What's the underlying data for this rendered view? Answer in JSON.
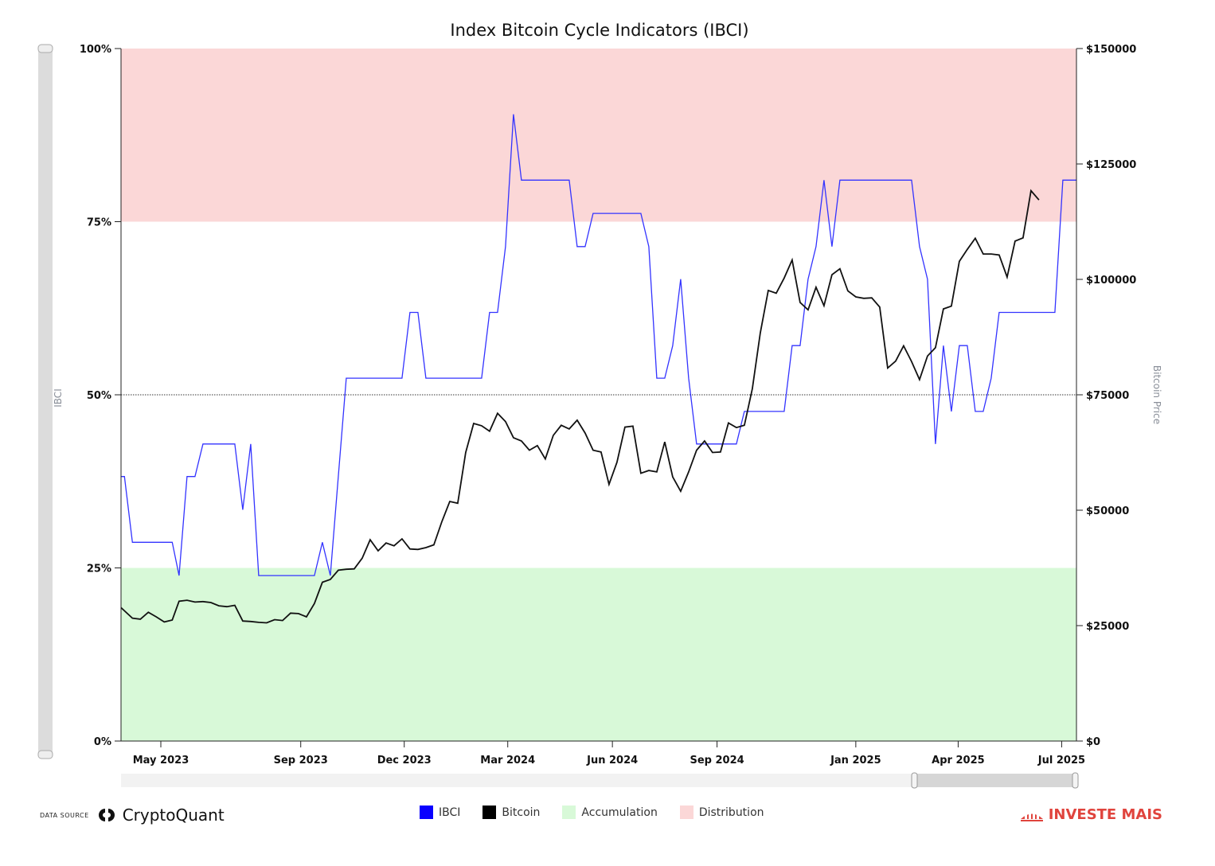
{
  "chart_data": {
    "type": "line",
    "title": "Index Bitcoin Cycle Indicators (IBCI)",
    "ylabel_left": "IBCI",
    "ylabel_right": "Bitcoin Price",
    "left_axis": {
      "ylim": [
        0,
        100
      ],
      "ticks": [
        0,
        25,
        50,
        75,
        100
      ],
      "tick_labels": [
        "0%",
        "25%",
        "50%",
        "75%",
        "100%"
      ]
    },
    "right_axis": {
      "ylim": [
        0,
        150000
      ],
      "ticks": [
        0,
        25000,
        50000,
        75000,
        100000,
        125000,
        150000
      ],
      "tick_labels": [
        "$0",
        "$25000",
        "$50000",
        "$75000",
        "$100000",
        "$125000",
        "$150000"
      ]
    },
    "x_range": [
      "2023-03-27",
      "2025-07-14"
    ],
    "x_ticks": [
      {
        "date": "2023-05-01",
        "label": "May 2023"
      },
      {
        "date": "2023-09-01",
        "label": "Sep 2023"
      },
      {
        "date": "2023-12-01",
        "label": "Dec 2023"
      },
      {
        "date": "2024-03-01",
        "label": "Mar 2024"
      },
      {
        "date": "2024-06-01",
        "label": "Jun 2024"
      },
      {
        "date": "2024-09-01",
        "label": "Sep 2024"
      },
      {
        "date": "2025-01-01",
        "label": "Jan 2025"
      },
      {
        "date": "2025-04-01",
        "label": "Apr 2025"
      },
      {
        "date": "2025-07-01",
        "label": "Jul 2025"
      }
    ],
    "zones": [
      {
        "name": "Accumulation",
        "from": 0,
        "to": 25,
        "color": "#d8f9d8"
      },
      {
        "name": "Distribution",
        "from": 75,
        "to": 100,
        "color": "#fbd7d7"
      }
    ],
    "reference_line": 50,
    "series": [
      {
        "name": "IBCI",
        "color": "#3333ff",
        "axis": "left",
        "points": [
          [
            "2023-03-27",
            38.2
          ],
          [
            "2023-03-30",
            38.2
          ],
          [
            "2023-04-06",
            28.7
          ],
          [
            "2023-04-13",
            28.7
          ],
          [
            "2023-04-20",
            28.7
          ],
          [
            "2023-04-27",
            28.7
          ],
          [
            "2023-05-04",
            28.7
          ],
          [
            "2023-05-11",
            28.7
          ],
          [
            "2023-05-17",
            23.9
          ],
          [
            "2023-05-24",
            38.2
          ],
          [
            "2023-05-31",
            38.2
          ],
          [
            "2023-06-07",
            42.9
          ],
          [
            "2023-06-14",
            42.9
          ],
          [
            "2023-06-21",
            42.9
          ],
          [
            "2023-06-28",
            42.9
          ],
          [
            "2023-07-05",
            42.9
          ],
          [
            "2023-07-12",
            33.4
          ],
          [
            "2023-07-19",
            42.9
          ],
          [
            "2023-07-26",
            23.9
          ],
          [
            "2023-08-02",
            23.9
          ],
          [
            "2023-08-09",
            23.9
          ],
          [
            "2023-08-16",
            23.9
          ],
          [
            "2023-08-23",
            23.9
          ],
          [
            "2023-08-30",
            23.9
          ],
          [
            "2023-09-06",
            23.9
          ],
          [
            "2023-09-13",
            23.9
          ],
          [
            "2023-09-20",
            28.7
          ],
          [
            "2023-09-27",
            23.9
          ],
          [
            "2023-10-04",
            38.2
          ],
          [
            "2023-10-11",
            52.4
          ],
          [
            "2023-10-18",
            52.4
          ],
          [
            "2023-10-25",
            52.4
          ],
          [
            "2023-11-01",
            52.4
          ],
          [
            "2023-11-08",
            52.4
          ],
          [
            "2023-11-15",
            52.4
          ],
          [
            "2023-11-22",
            52.4
          ],
          [
            "2023-11-29",
            52.4
          ],
          [
            "2023-12-06",
            61.9
          ],
          [
            "2023-12-13",
            61.9
          ],
          [
            "2023-12-20",
            52.4
          ],
          [
            "2023-12-27",
            52.4
          ],
          [
            "2024-01-03",
            52.4
          ],
          [
            "2024-01-10",
            52.4
          ],
          [
            "2024-01-17",
            52.4
          ],
          [
            "2024-01-24",
            52.4
          ],
          [
            "2024-01-31",
            52.4
          ],
          [
            "2024-02-07",
            52.4
          ],
          [
            "2024-02-14",
            61.9
          ],
          [
            "2024-02-21",
            61.9
          ],
          [
            "2024-02-28",
            71.4
          ],
          [
            "2024-03-06",
            90.5
          ],
          [
            "2024-03-13",
            81.0
          ],
          [
            "2024-03-20",
            81.0
          ],
          [
            "2024-03-27",
            81.0
          ],
          [
            "2024-04-03",
            81.0
          ],
          [
            "2024-04-10",
            81.0
          ],
          [
            "2024-04-17",
            81.0
          ],
          [
            "2024-04-24",
            81.0
          ],
          [
            "2024-05-01",
            71.4
          ],
          [
            "2024-05-08",
            71.4
          ],
          [
            "2024-05-15",
            76.2
          ],
          [
            "2024-05-22",
            76.2
          ],
          [
            "2024-05-29",
            76.2
          ],
          [
            "2024-06-05",
            76.2
          ],
          [
            "2024-06-12",
            76.2
          ],
          [
            "2024-06-19",
            76.2
          ],
          [
            "2024-06-26",
            76.2
          ],
          [
            "2024-07-03",
            71.4
          ],
          [
            "2024-07-10",
            52.4
          ],
          [
            "2024-07-17",
            52.4
          ],
          [
            "2024-07-24",
            57.1
          ],
          [
            "2024-07-31",
            66.7
          ],
          [
            "2024-08-07",
            52.4
          ],
          [
            "2024-08-14",
            42.9
          ],
          [
            "2024-08-21",
            42.9
          ],
          [
            "2024-08-28",
            42.9
          ],
          [
            "2024-09-04",
            42.9
          ],
          [
            "2024-09-11",
            42.9
          ],
          [
            "2024-09-18",
            42.9
          ],
          [
            "2024-09-25",
            47.6
          ],
          [
            "2024-10-02",
            47.6
          ],
          [
            "2024-10-09",
            47.6
          ],
          [
            "2024-10-16",
            47.6
          ],
          [
            "2024-10-23",
            47.6
          ],
          [
            "2024-10-30",
            47.6
          ],
          [
            "2024-11-06",
            57.1
          ],
          [
            "2024-11-13",
            57.1
          ],
          [
            "2024-11-20",
            66.7
          ],
          [
            "2024-11-27",
            71.4
          ],
          [
            "2024-12-04",
            81.0
          ],
          [
            "2024-12-11",
            71.4
          ],
          [
            "2024-12-18",
            81.0
          ],
          [
            "2024-12-25",
            81.0
          ],
          [
            "2025-01-01",
            81.0
          ],
          [
            "2025-01-08",
            81.0
          ],
          [
            "2025-01-15",
            81.0
          ],
          [
            "2025-01-22",
            81.0
          ],
          [
            "2025-01-29",
            81.0
          ],
          [
            "2025-02-05",
            81.0
          ],
          [
            "2025-02-12",
            81.0
          ],
          [
            "2025-02-19",
            81.0
          ],
          [
            "2025-02-26",
            71.4
          ],
          [
            "2025-03-05",
            66.7
          ],
          [
            "2025-03-12",
            42.9
          ],
          [
            "2025-03-19",
            57.1
          ],
          [
            "2025-03-26",
            47.6
          ],
          [
            "2025-04-02",
            57.1
          ],
          [
            "2025-04-09",
            57.1
          ],
          [
            "2025-04-16",
            47.6
          ],
          [
            "2025-04-23",
            47.6
          ],
          [
            "2025-04-30",
            52.4
          ],
          [
            "2025-05-07",
            61.9
          ],
          [
            "2025-05-14",
            61.9
          ],
          [
            "2025-05-21",
            61.9
          ],
          [
            "2025-05-28",
            61.9
          ],
          [
            "2025-06-04",
            61.9
          ],
          [
            "2025-06-11",
            61.9
          ],
          [
            "2025-06-18",
            61.9
          ],
          [
            "2025-06-25",
            61.9
          ],
          [
            "2025-07-02",
            81.0
          ],
          [
            "2025-07-09",
            81.0
          ],
          [
            "2025-07-14",
            81.0
          ]
        ]
      },
      {
        "name": "Bitcoin",
        "color": "#111111",
        "axis": "right",
        "points": [
          [
            "2023-03-27",
            28900
          ],
          [
            "2023-03-30",
            28200
          ],
          [
            "2023-04-06",
            26600
          ],
          [
            "2023-04-13",
            26400
          ],
          [
            "2023-04-20",
            27900
          ],
          [
            "2023-04-27",
            26900
          ],
          [
            "2023-05-04",
            25800
          ],
          [
            "2023-05-11",
            26200
          ],
          [
            "2023-05-17",
            30300
          ],
          [
            "2023-05-24",
            30500
          ],
          [
            "2023-05-31",
            30100
          ],
          [
            "2023-06-07",
            30200
          ],
          [
            "2023-06-14",
            30000
          ],
          [
            "2023-06-21",
            29300
          ],
          [
            "2023-06-28",
            29100
          ],
          [
            "2023-07-05",
            29400
          ],
          [
            "2023-07-12",
            26000
          ],
          [
            "2023-07-19",
            25900
          ],
          [
            "2023-07-26",
            25700
          ],
          [
            "2023-08-02",
            25600
          ],
          [
            "2023-08-09",
            26300
          ],
          [
            "2023-08-16",
            26100
          ],
          [
            "2023-08-23",
            27700
          ],
          [
            "2023-08-30",
            27600
          ],
          [
            "2023-09-06",
            26900
          ],
          [
            "2023-09-13",
            29800
          ],
          [
            "2023-09-20",
            34400
          ],
          [
            "2023-09-27",
            35000
          ],
          [
            "2023-10-04",
            37000
          ],
          [
            "2023-10-11",
            37200
          ],
          [
            "2023-10-18",
            37300
          ],
          [
            "2023-10-25",
            39600
          ],
          [
            "2023-11-01",
            43600
          ],
          [
            "2023-11-08",
            41200
          ],
          [
            "2023-11-15",
            42900
          ],
          [
            "2023-11-22",
            42300
          ],
          [
            "2023-11-29",
            43800
          ],
          [
            "2023-12-06",
            41600
          ],
          [
            "2023-12-13",
            41500
          ],
          [
            "2023-12-20",
            41900
          ],
          [
            "2023-12-27",
            42500
          ],
          [
            "2024-01-03",
            47500
          ],
          [
            "2024-01-10",
            51900
          ],
          [
            "2024-01-17",
            51500
          ],
          [
            "2024-01-24",
            62500
          ],
          [
            "2024-01-31",
            68800
          ],
          [
            "2024-02-07",
            68300
          ],
          [
            "2024-02-14",
            67100
          ],
          [
            "2024-02-21",
            71000
          ],
          [
            "2024-02-28",
            69200
          ],
          [
            "2024-03-06",
            65700
          ],
          [
            "2024-03-13",
            65000
          ],
          [
            "2024-03-20",
            63000
          ],
          [
            "2024-03-27",
            64000
          ],
          [
            "2024-04-03",
            61100
          ],
          [
            "2024-04-10",
            66200
          ],
          [
            "2024-04-17",
            68400
          ],
          [
            "2024-04-24",
            67600
          ],
          [
            "2024-05-01",
            69500
          ],
          [
            "2024-05-08",
            66700
          ],
          [
            "2024-05-15",
            63000
          ],
          [
            "2024-05-22",
            62600
          ],
          [
            "2024-05-29",
            55600
          ],
          [
            "2024-06-05",
            60400
          ],
          [
            "2024-06-12",
            68000
          ],
          [
            "2024-06-19",
            68200
          ],
          [
            "2024-06-26",
            58000
          ],
          [
            "2024-07-03",
            58600
          ],
          [
            "2024-07-10",
            58300
          ],
          [
            "2024-07-17",
            64800
          ],
          [
            "2024-07-24",
            57200
          ],
          [
            "2024-07-31",
            54100
          ],
          [
            "2024-08-07",
            58300
          ],
          [
            "2024-08-14",
            63000
          ],
          [
            "2024-08-21",
            65000
          ],
          [
            "2024-08-28",
            62500
          ],
          [
            "2024-09-04",
            62600
          ],
          [
            "2024-09-11",
            68900
          ],
          [
            "2024-09-18",
            67900
          ],
          [
            "2024-09-25",
            68400
          ],
          [
            "2024-10-02",
            76300
          ],
          [
            "2024-10-09",
            88400
          ],
          [
            "2024-10-16",
            97600
          ],
          [
            "2024-10-23",
            97000
          ],
          [
            "2024-10-30",
            100300
          ],
          [
            "2024-11-06",
            104200
          ],
          [
            "2024-11-13",
            95000
          ],
          [
            "2024-11-20",
            93400
          ],
          [
            "2024-11-27",
            98300
          ],
          [
            "2024-12-04",
            94300
          ],
          [
            "2024-12-11",
            101000
          ],
          [
            "2024-12-18",
            102300
          ],
          [
            "2024-12-25",
            97500
          ],
          [
            "2025-01-01",
            96200
          ],
          [
            "2025-01-08",
            95900
          ],
          [
            "2025-01-15",
            96000
          ],
          [
            "2025-01-22",
            94000
          ],
          [
            "2025-01-29",
            80800
          ],
          [
            "2025-02-05",
            82300
          ],
          [
            "2025-02-12",
            85600
          ],
          [
            "2025-02-19",
            82200
          ],
          [
            "2025-02-26",
            78300
          ],
          [
            "2025-03-05",
            83400
          ],
          [
            "2025-03-12",
            85200
          ],
          [
            "2025-03-19",
            93600
          ],
          [
            "2025-03-26",
            94200
          ],
          [
            "2025-04-02",
            103900
          ],
          [
            "2025-04-09",
            106500
          ],
          [
            "2025-04-16",
            108900
          ],
          [
            "2025-04-23",
            105500
          ],
          [
            "2025-04-30",
            105500
          ],
          [
            "2025-05-07",
            105300
          ],
          [
            "2025-05-14",
            100500
          ],
          [
            "2025-05-21",
            108300
          ],
          [
            "2025-05-28",
            109000
          ],
          [
            "2025-06-04",
            119200
          ],
          [
            "2025-06-11",
            117200
          ]
        ]
      }
    ],
    "legend": [
      "IBCI",
      "Bitcoin",
      "Accumulation",
      "Distribution"
    ],
    "legend_position": "bottom-center",
    "grid": false
  },
  "legend": {
    "items": [
      {
        "label": "IBCI",
        "color": "#0a00ff"
      },
      {
        "label": "Bitcoin",
        "color": "#000000"
      },
      {
        "label": "Accumulation",
        "color": "#d8f9d8"
      },
      {
        "label": "Distribution",
        "color": "#fbd7d7"
      }
    ]
  },
  "source": {
    "label": "DATA SOURCE",
    "name": "CryptoQuant"
  },
  "brand": {
    "name": "INVESTE MAIS",
    "color": "#e0443d"
  }
}
